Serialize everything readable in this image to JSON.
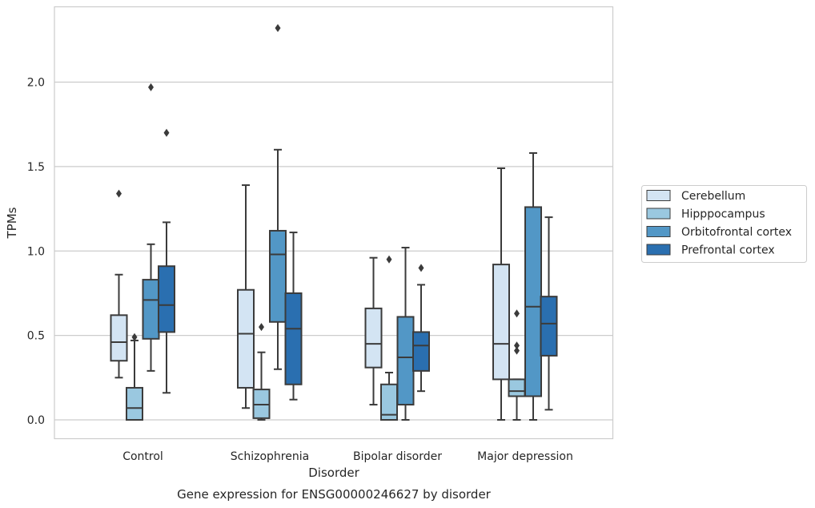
{
  "chart_data": {
    "type": "box",
    "title": "",
    "xlabel": "Disorder",
    "ylabel": "TPMs",
    "caption": "Gene expression for ENSG00000246627 by disorder",
    "ylim": [
      -0.11,
      2.45
    ],
    "yticks": [
      "0.0",
      "0.5",
      "1.0",
      "1.5",
      "2.0"
    ],
    "grid": true,
    "legend_position": "right",
    "categories": [
      "Control",
      "Schizophrenia",
      "Bipolar disorder",
      "Major depression"
    ],
    "series": [
      {
        "name": "Cerebellum",
        "color": "#d3e4f3",
        "boxes": [
          {
            "whisker_low": 0.25,
            "q1": 0.35,
            "median": 0.46,
            "q3": 0.62,
            "whisker_high": 0.86,
            "outliers": [
              1.34
            ]
          },
          {
            "whisker_low": 0.07,
            "q1": 0.19,
            "median": 0.51,
            "q3": 0.77,
            "whisker_high": 1.39,
            "outliers": []
          },
          {
            "whisker_low": 0.09,
            "q1": 0.31,
            "median": 0.45,
            "q3": 0.66,
            "whisker_high": 0.96,
            "outliers": []
          },
          {
            "whisker_low": 0.0,
            "q1": 0.24,
            "median": 0.45,
            "q3": 0.92,
            "whisker_high": 1.49,
            "outliers": []
          }
        ]
      },
      {
        "name": "Hipppocampus",
        "color": "#9ac8e0",
        "boxes": [
          {
            "whisker_low": 0.0,
            "q1": 0.0,
            "median": 0.07,
            "q3": 0.19,
            "whisker_high": 0.47,
            "outliers": [
              0.49
            ]
          },
          {
            "whisker_low": 0.0,
            "q1": 0.01,
            "median": 0.09,
            "q3": 0.18,
            "whisker_high": 0.4,
            "outliers": [
              0.55
            ]
          },
          {
            "whisker_low": 0.0,
            "q1": 0.0,
            "median": 0.03,
            "q3": 0.21,
            "whisker_high": 0.28,
            "outliers": [
              0.95
            ]
          },
          {
            "whisker_low": 0.0,
            "q1": 0.14,
            "median": 0.17,
            "q3": 0.24,
            "whisker_high": 0.24,
            "outliers": [
              0.63,
              0.44,
              0.41
            ]
          }
        ]
      },
      {
        "name": "Orbitofrontal cortex",
        "color": "#5297c6",
        "boxes": [
          {
            "whisker_low": 0.29,
            "q1": 0.48,
            "median": 0.71,
            "q3": 0.83,
            "whisker_high": 1.04,
            "outliers": [
              1.97
            ]
          },
          {
            "whisker_low": 0.3,
            "q1": 0.58,
            "median": 0.98,
            "q3": 1.12,
            "whisker_high": 1.6,
            "outliers": [
              2.32
            ]
          },
          {
            "whisker_low": 0.0,
            "q1": 0.09,
            "median": 0.37,
            "q3": 0.61,
            "whisker_high": 1.02,
            "outliers": []
          },
          {
            "whisker_low": 0.0,
            "q1": 0.14,
            "median": 0.67,
            "q3": 1.26,
            "whisker_high": 1.58,
            "outliers": []
          }
        ]
      },
      {
        "name": "Prefrontal cortex",
        "color": "#2a6fb0",
        "boxes": [
          {
            "whisker_low": 0.16,
            "q1": 0.52,
            "median": 0.68,
            "q3": 0.91,
            "whisker_high": 1.17,
            "outliers": [
              1.7
            ]
          },
          {
            "whisker_low": 0.12,
            "q1": 0.21,
            "median": 0.54,
            "q3": 0.75,
            "whisker_high": 1.11,
            "outliers": []
          },
          {
            "whisker_low": 0.17,
            "q1": 0.29,
            "median": 0.44,
            "q3": 0.52,
            "whisker_high": 0.8,
            "outliers": [
              0.9
            ]
          },
          {
            "whisker_low": 0.06,
            "q1": 0.38,
            "median": 0.57,
            "q3": 0.73,
            "whisker_high": 1.2,
            "outliers": []
          }
        ]
      }
    ]
  }
}
